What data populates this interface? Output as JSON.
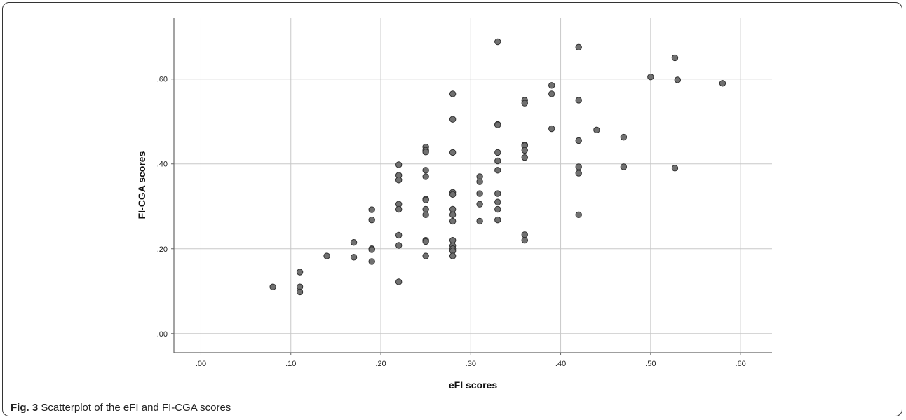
{
  "caption": {
    "label": "Fig. 3",
    "text": "Scatterplot of the eFI and FI-CGA scores"
  },
  "colors": {
    "point_fill": "#707070",
    "point_stroke": "#2f2f2f",
    "grid": "#c8c8c8",
    "axis": "#666666"
  },
  "chart_data": {
    "type": "scatter",
    "xlabel": "eFI scores",
    "ylabel": "FI-CGA scores",
    "xlim": [
      -0.03,
      0.635
    ],
    "ylim": [
      -0.045,
      0.745
    ],
    "xticks": [
      0.0,
      0.1,
      0.2,
      0.3,
      0.4,
      0.5,
      0.6
    ],
    "xtick_labels": [
      ".00",
      ".10",
      ".20",
      ".30",
      ".40",
      ".50",
      ".60"
    ],
    "yticks": [
      0.0,
      0.2,
      0.4,
      0.6
    ],
    "ytick_labels": [
      ".00",
      ".20",
      ".40",
      ".60"
    ],
    "grid": true,
    "points": [
      [
        0.08,
        0.11
      ],
      [
        0.11,
        0.145
      ],
      [
        0.11,
        0.11
      ],
      [
        0.11,
        0.098
      ],
      [
        0.14,
        0.183
      ],
      [
        0.17,
        0.215
      ],
      [
        0.17,
        0.18
      ],
      [
        0.19,
        0.292
      ],
      [
        0.19,
        0.268
      ],
      [
        0.19,
        0.2
      ],
      [
        0.19,
        0.198
      ],
      [
        0.19,
        0.17
      ],
      [
        0.22,
        0.398
      ],
      [
        0.22,
        0.373
      ],
      [
        0.22,
        0.362
      ],
      [
        0.22,
        0.305
      ],
      [
        0.22,
        0.293
      ],
      [
        0.22,
        0.232
      ],
      [
        0.22,
        0.208
      ],
      [
        0.22,
        0.122
      ],
      [
        0.25,
        0.44
      ],
      [
        0.25,
        0.432
      ],
      [
        0.25,
        0.428
      ],
      [
        0.25,
        0.385
      ],
      [
        0.25,
        0.37
      ],
      [
        0.25,
        0.317
      ],
      [
        0.25,
        0.315
      ],
      [
        0.25,
        0.293
      ],
      [
        0.25,
        0.28
      ],
      [
        0.25,
        0.22
      ],
      [
        0.25,
        0.217
      ],
      [
        0.25,
        0.183
      ],
      [
        0.28,
        0.565
      ],
      [
        0.28,
        0.505
      ],
      [
        0.28,
        0.427
      ],
      [
        0.28,
        0.333
      ],
      [
        0.28,
        0.328
      ],
      [
        0.28,
        0.293
      ],
      [
        0.28,
        0.28
      ],
      [
        0.28,
        0.265
      ],
      [
        0.28,
        0.22
      ],
      [
        0.28,
        0.207
      ],
      [
        0.28,
        0.2
      ],
      [
        0.28,
        0.195
      ],
      [
        0.28,
        0.183
      ],
      [
        0.31,
        0.37
      ],
      [
        0.31,
        0.358
      ],
      [
        0.31,
        0.33
      ],
      [
        0.31,
        0.305
      ],
      [
        0.31,
        0.265
      ],
      [
        0.33,
        0.688
      ],
      [
        0.33,
        0.493
      ],
      [
        0.33,
        0.492
      ],
      [
        0.33,
        0.427
      ],
      [
        0.33,
        0.407
      ],
      [
        0.33,
        0.385
      ],
      [
        0.33,
        0.33
      ],
      [
        0.33,
        0.31
      ],
      [
        0.33,
        0.293
      ],
      [
        0.33,
        0.268
      ],
      [
        0.36,
        0.55
      ],
      [
        0.36,
        0.543
      ],
      [
        0.36,
        0.445
      ],
      [
        0.36,
        0.443
      ],
      [
        0.36,
        0.432
      ],
      [
        0.36,
        0.415
      ],
      [
        0.36,
        0.233
      ],
      [
        0.36,
        0.22
      ],
      [
        0.39,
        0.585
      ],
      [
        0.39,
        0.565
      ],
      [
        0.39,
        0.483
      ],
      [
        0.42,
        0.675
      ],
      [
        0.42,
        0.55
      ],
      [
        0.42,
        0.455
      ],
      [
        0.42,
        0.393
      ],
      [
        0.42,
        0.378
      ],
      [
        0.42,
        0.28
      ],
      [
        0.44,
        0.48
      ],
      [
        0.47,
        0.463
      ],
      [
        0.47,
        0.393
      ],
      [
        0.5,
        0.605
      ],
      [
        0.527,
        0.65
      ],
      [
        0.527,
        0.39
      ],
      [
        0.53,
        0.598
      ],
      [
        0.58,
        0.59
      ]
    ]
  }
}
